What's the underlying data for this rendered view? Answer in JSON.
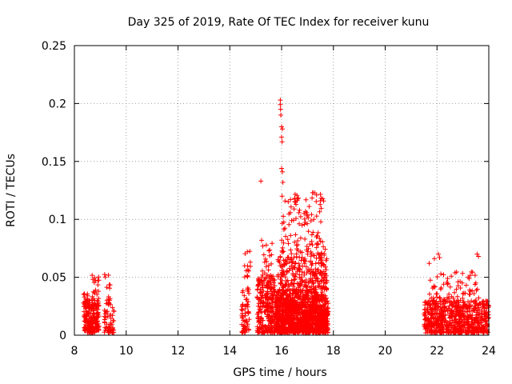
{
  "chart_data": {
    "type": "scatter",
    "title": "Day 325 of 2019, Rate Of TEC Index for receiver kunu",
    "xlabel": "GPS time / hours",
    "ylabel": "ROTI / TECUs",
    "xlim": [
      8,
      24
    ],
    "ylim": [
      0,
      0.25
    ],
    "xticks": [
      8,
      10,
      12,
      14,
      16,
      18,
      20,
      22,
      24
    ],
    "xtick_labels": [
      "8",
      "10",
      "12",
      "14",
      "16",
      "18",
      "20",
      "22",
      "24"
    ],
    "yticks": [
      0,
      0.05,
      0.1,
      0.15,
      0.2,
      0.25
    ],
    "ytick_labels": [
      "0",
      "0.05",
      "0.1",
      "0.15",
      "0.2",
      "0.25"
    ],
    "grid": true,
    "marker": "+",
    "color": "#ff0000",
    "series": [
      {
        "name": "ROTI",
        "clusters": [
          {
            "x": [
              8.35,
              8.95
            ],
            "y": [
              0.002,
              0.03
            ],
            "n": 200
          },
          {
            "x": [
              8.35,
              8.55
            ],
            "y": [
              0.025,
              0.039
            ],
            "n": 18
          },
          {
            "x": [
              8.65,
              8.95
            ],
            "y": [
              0.025,
              0.052
            ],
            "n": 30
          },
          {
            "x": [
              9.15,
              9.55
            ],
            "y": [
              0.002,
              0.03
            ],
            "n": 60
          },
          {
            "x": [
              9.15,
              9.4
            ],
            "y": [
              0.03,
              0.055
            ],
            "n": 12
          },
          {
            "x": [
              14.45,
              14.75
            ],
            "y": [
              0.002,
              0.042
            ],
            "n": 60
          },
          {
            "x": [
              14.55,
              14.8
            ],
            "y": [
              0.05,
              0.076
            ],
            "n": 14
          },
          {
            "x": [
              15.05,
              15.75
            ],
            "y": [
              0.002,
              0.05
            ],
            "n": 260
          },
          {
            "x": [
              15.2,
              15.7
            ],
            "y": [
              0.05,
              0.082
            ],
            "n": 25
          },
          {
            "x": [
              15.75,
              17.8
            ],
            "y": [
              0.002,
              0.035
            ],
            "n": 1200
          },
          {
            "x": [
              15.85,
              17.75
            ],
            "y": [
              0.035,
              0.07
            ],
            "n": 320
          },
          {
            "x": [
              16.0,
              17.7
            ],
            "y": [
              0.07,
              0.123
            ],
            "n": 110
          },
          {
            "x": [
              21.5,
              23.0
            ],
            "y": [
              0.002,
              0.03
            ],
            "n": 420
          },
          {
            "x": [
              23.0,
              24.0
            ],
            "y": [
              0.002,
              0.03
            ],
            "n": 260
          },
          {
            "x": [
              21.6,
              23.7
            ],
            "y": [
              0.03,
              0.055
            ],
            "n": 70
          }
        ],
        "points": [
          {
            "x": 15.2,
            "y": 0.133
          },
          {
            "x": 15.95,
            "y": 0.203
          },
          {
            "x": 15.95,
            "y": 0.199
          },
          {
            "x": 15.96,
            "y": 0.195
          },
          {
            "x": 15.97,
            "y": 0.19
          },
          {
            "x": 16.0,
            "y": 0.18
          },
          {
            "x": 16.03,
            "y": 0.178
          },
          {
            "x": 16.0,
            "y": 0.171
          },
          {
            "x": 16.02,
            "y": 0.167
          },
          {
            "x": 16.0,
            "y": 0.144
          },
          {
            "x": 16.03,
            "y": 0.141
          },
          {
            "x": 16.05,
            "y": 0.132
          },
          {
            "x": 16.02,
            "y": 0.12
          },
          {
            "x": 16.5,
            "y": 0.118
          },
          {
            "x": 17.2,
            "y": 0.123
          },
          {
            "x": 17.35,
            "y": 0.121
          },
          {
            "x": 17.5,
            "y": 0.116
          },
          {
            "x": 21.7,
            "y": 0.062
          },
          {
            "x": 21.9,
            "y": 0.066
          },
          {
            "x": 22.05,
            "y": 0.07
          },
          {
            "x": 22.1,
            "y": 0.067
          },
          {
            "x": 23.55,
            "y": 0.07
          },
          {
            "x": 23.6,
            "y": 0.068
          },
          {
            "x": 23.5,
            "y": 0.045
          },
          {
            "x": 23.9,
            "y": 0.027
          },
          {
            "x": 24.0,
            "y": 0.025
          }
        ]
      }
    ]
  }
}
